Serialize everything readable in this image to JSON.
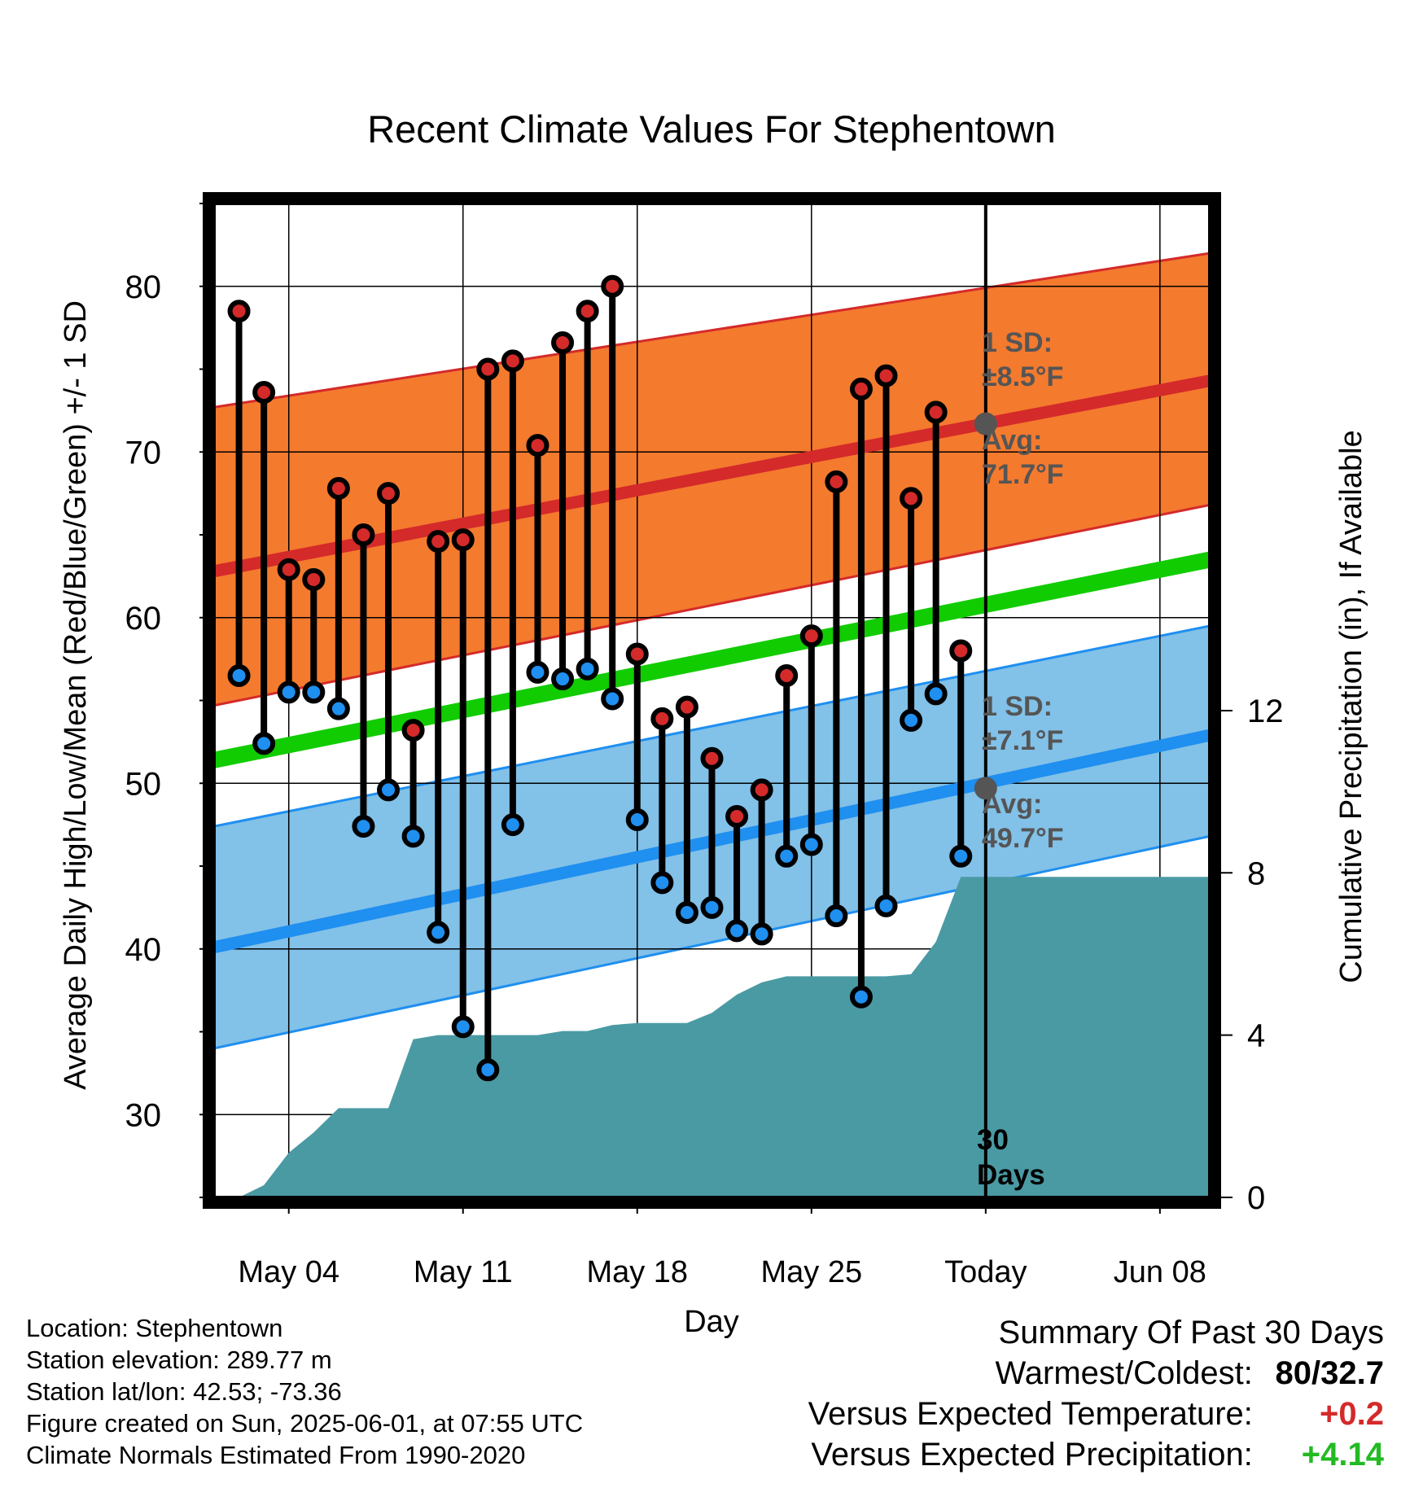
{
  "chart_data": {
    "type": "line",
    "title": "Recent Climate Values For Stephentown",
    "xlabel": "Day",
    "ylabel_left": "Average Daily High/Low/Mean (Red/Blue/Green) +/- 1 SD",
    "ylabel_right": "Cumulative Precipitation (in), If Available",
    "ylim_left": [
      25,
      85
    ],
    "ylim_right": [
      0,
      24.5
    ],
    "y_ticks_left": [
      30,
      40,
      50,
      60,
      70,
      80
    ],
    "y_ticks_right": [
      0,
      4,
      8,
      12
    ],
    "x_range": [
      "2025-05-01",
      "2025-06-10"
    ],
    "x_ticks": [
      {
        "date": "2025-05-04",
        "label": "May 04"
      },
      {
        "date": "2025-05-11",
        "label": "May 11"
      },
      {
        "date": "2025-05-18",
        "label": "May 18"
      },
      {
        "date": "2025-05-25",
        "label": "May 25"
      },
      {
        "date": "2025-06-01",
        "label": "Today"
      },
      {
        "date": "2025-06-08",
        "label": "Jun 08"
      }
    ],
    "today_date": "2025-06-01",
    "grid": true,
    "colors": {
      "high": "#d42a2a",
      "high_band": "#f47a2e",
      "low": "#1f8ff0",
      "low_band": "#82c1e8",
      "mean": "#11cc00",
      "precip": "#4a9aa4",
      "sd_text": "#555555"
    },
    "normals": {
      "dates": [
        "2025-05-01",
        "2025-06-10"
      ],
      "high_mean": [
        62.8,
        74.3
      ],
      "high_upper": [
        72.7,
        82.0
      ],
      "high_lower": [
        54.7,
        66.8
      ],
      "low_mean": [
        40.1,
        52.9
      ],
      "low_upper": [
        47.4,
        59.5
      ],
      "low_lower": [
        34.0,
        46.8
      ],
      "mean": [
        51.4,
        63.5
      ]
    },
    "daily": {
      "dates": [
        "2025-05-02",
        "2025-05-03",
        "2025-05-04",
        "2025-05-05",
        "2025-05-06",
        "2025-05-07",
        "2025-05-08",
        "2025-05-09",
        "2025-05-10",
        "2025-05-11",
        "2025-05-12",
        "2025-05-13",
        "2025-05-14",
        "2025-05-15",
        "2025-05-16",
        "2025-05-17",
        "2025-05-18",
        "2025-05-19",
        "2025-05-20",
        "2025-05-21",
        "2025-05-22",
        "2025-05-23",
        "2025-05-24",
        "2025-05-25",
        "2025-05-26",
        "2025-05-27",
        "2025-05-28",
        "2025-05-29",
        "2025-05-30",
        "2025-05-31"
      ],
      "high": [
        78.5,
        73.6,
        62.9,
        62.3,
        67.8,
        65.0,
        67.5,
        53.2,
        64.6,
        64.7,
        75.0,
        75.5,
        70.4,
        76.6,
        78.5,
        80.0,
        57.8,
        53.9,
        54.6,
        51.5,
        48.0,
        49.6,
        56.5,
        58.9,
        68.2,
        73.8,
        74.6,
        67.2,
        72.4,
        58.0
      ],
      "low": [
        56.5,
        52.4,
        55.5,
        55.5,
        54.5,
        47.4,
        49.6,
        46.8,
        41.0,
        35.3,
        32.7,
        47.5,
        56.7,
        56.3,
        56.9,
        55.1,
        47.8,
        44.0,
        42.2,
        42.5,
        41.1,
        40.9,
        45.6,
        46.3,
        42.0,
        37.1,
        42.6,
        53.8,
        55.4,
        45.6
      ]
    },
    "precip": {
      "dates": [
        "2025-05-01",
        "2025-05-02",
        "2025-05-03",
        "2025-05-04",
        "2025-05-05",
        "2025-05-06",
        "2025-05-07",
        "2025-05-08",
        "2025-05-09",
        "2025-05-10",
        "2025-05-11",
        "2025-05-12",
        "2025-05-13",
        "2025-05-14",
        "2025-05-15",
        "2025-05-16",
        "2025-05-17",
        "2025-05-18",
        "2025-05-19",
        "2025-05-20",
        "2025-05-21",
        "2025-05-22",
        "2025-05-23",
        "2025-05-24",
        "2025-05-25",
        "2025-05-26",
        "2025-05-27",
        "2025-05-28",
        "2025-05-29",
        "2025-05-30",
        "2025-05-31",
        "2025-06-01",
        "2025-06-10"
      ],
      "values": [
        0,
        0,
        0.3,
        1.1,
        1.6,
        2.2,
        2.2,
        2.2,
        3.9,
        4.0,
        4.0,
        4.0,
        4.0,
        4.0,
        4.1,
        4.1,
        4.25,
        4.3,
        4.3,
        4.3,
        4.55,
        5.0,
        5.3,
        5.45,
        5.45,
        5.45,
        5.45,
        5.45,
        5.5,
        6.3,
        7.9,
        7.9,
        7.9
      ]
    },
    "annotations": {
      "high_sd_label": "1 SD:",
      "high_sd_value": "±8.5°F",
      "high_avg_label": "Avg:",
      "high_avg_value": "71.7°F",
      "high_avg": 71.7,
      "low_sd_label": "1 SD:",
      "low_sd_value": "±7.1°F",
      "low_avg_label": "Avg:",
      "low_avg_value": "49.7°F",
      "low_avg": 49.7,
      "days_count": "30",
      "days_word": "Days"
    }
  },
  "footer": {
    "location": "Location: Stephentown",
    "elevation": "Station elevation: 289.77 m",
    "latlon": "Station lat/lon: 42.53; -73.36",
    "created": "Figure created on Sun, 2025-06-01, at 07:55 UTC",
    "normals": "Climate Normals Estimated From 1990-2020"
  },
  "summary": {
    "title": "Summary Of Past 30 Days",
    "warmest_label": "Warmest/Coldest:",
    "warmest_value": "80/32.7",
    "temp_label": "Versus Expected Temperature:",
    "temp_value": "+0.2",
    "precip_label": "Versus Expected Precipitation:",
    "precip_value": "+4.14"
  }
}
